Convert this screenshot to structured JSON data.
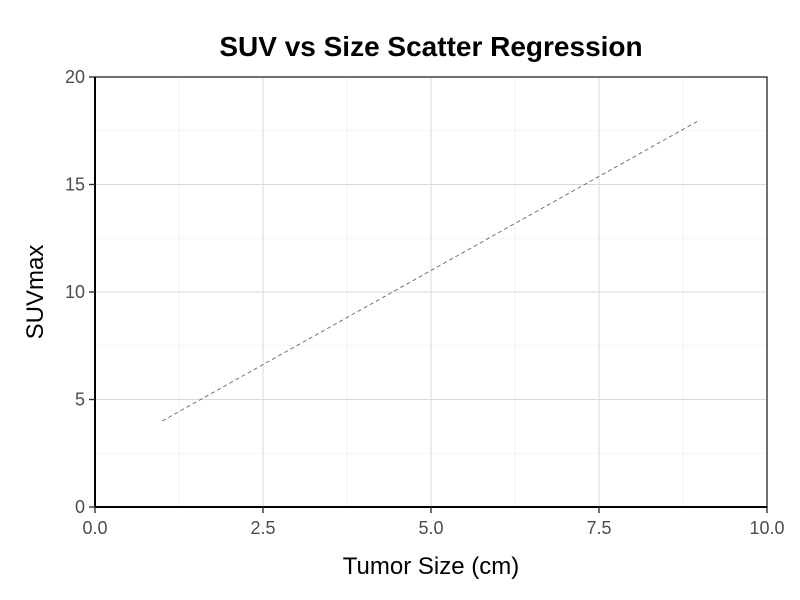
{
  "chart_data": {
    "type": "line",
    "title": "SUV vs Size Scatter Regression",
    "xlabel": "Tumor Size (cm)",
    "ylabel": "SUVmax",
    "xlim": [
      0,
      10
    ],
    "ylim": [
      0,
      20
    ],
    "xticks": [
      0,
      2.5,
      5,
      7.5,
      10
    ],
    "xtick_labels": [
      "0.0",
      "2.5",
      "5.0",
      "7.5",
      "10.0"
    ],
    "yticks": [
      0,
      5,
      10,
      15,
      20
    ],
    "ytick_labels": [
      "0",
      "5",
      "10",
      "15",
      "20"
    ],
    "grid": true,
    "series": [
      {
        "style": "dashed",
        "color": "#666666",
        "x": [
          1,
          9
        ],
        "y": [
          4,
          18
        ]
      }
    ]
  }
}
